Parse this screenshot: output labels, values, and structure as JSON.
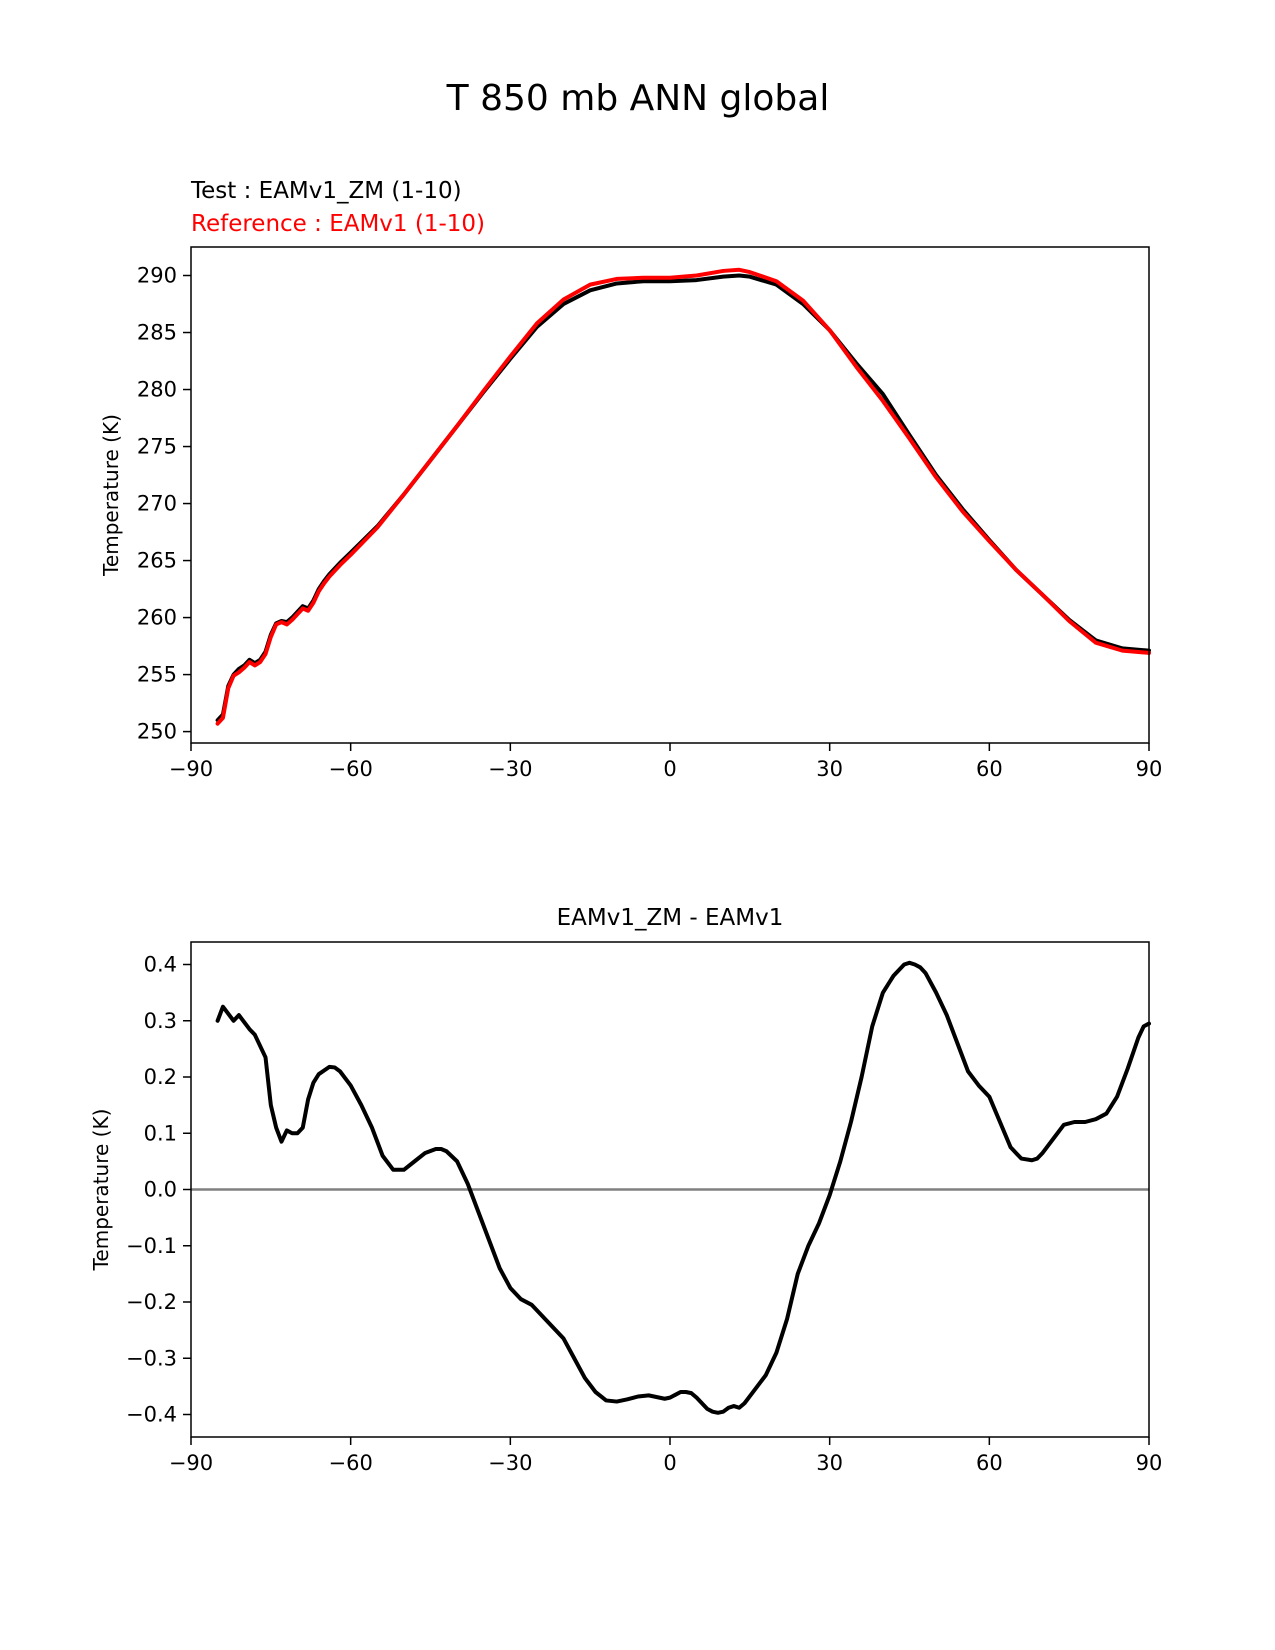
{
  "figure": {
    "title": "T 850 mb ANN global"
  },
  "chart_data": [
    {
      "type": "line",
      "title": "",
      "xlabel": "",
      "ylabel": "Temperature (K)",
      "xlim": [
        -90,
        90
      ],
      "ylim": [
        249,
        292.5
      ],
      "xticks": [
        -90,
        -60,
        -30,
        0,
        30,
        60,
        90
      ],
      "xtick_labels": [
        "−90",
        "−60",
        "−30",
        "0",
        "30",
        "60",
        "90"
      ],
      "yticks": [
        250,
        255,
        260,
        265,
        270,
        275,
        280,
        285,
        290
      ],
      "ytick_labels": [
        "250",
        "255",
        "260",
        "265",
        "270",
        "275",
        "280",
        "285",
        "290"
      ],
      "grid": false,
      "legend": [
        {
          "text": "Test : EAMv1_ZM (1-10)",
          "color": "#000000"
        },
        {
          "text": "Reference : EAMv1 (1-10)",
          "color": "#ff0000"
        }
      ],
      "x": [
        -85,
        -84,
        -83,
        -82,
        -81,
        -80,
        -79,
        -78,
        -77,
        -76,
        -75,
        -74,
        -73,
        -72,
        -71,
        -70,
        -69,
        -68,
        -67,
        -66,
        -65,
        -64,
        -62,
        -60,
        -55,
        -50,
        -45,
        -40,
        -35,
        -30,
        -25,
        -20,
        -15,
        -10,
        -5,
        0,
        5,
        10,
        13,
        15,
        20,
        25,
        30,
        35,
        40,
        45,
        50,
        55,
        60,
        65,
        70,
        75,
        80,
        85,
        90
      ],
      "series": [
        {
          "name": "Test : EAMv1_ZM (1-10)",
          "color": "#000000",
          "values": [
            251.0,
            251.5,
            254.0,
            255.0,
            255.5,
            255.8,
            256.3,
            256.0,
            256.3,
            257.0,
            258.5,
            259.5,
            259.7,
            259.6,
            260.0,
            260.5,
            261.0,
            260.8,
            261.5,
            262.5,
            263.2,
            263.8,
            264.8,
            265.7,
            268.0,
            270.8,
            273.8,
            276.8,
            279.8,
            282.7,
            285.5,
            287.5,
            288.7,
            289.3,
            289.5,
            289.5,
            289.6,
            289.9,
            290.0,
            289.9,
            289.2,
            287.5,
            285.2,
            282.3,
            279.6,
            276.0,
            272.5,
            269.5,
            266.8,
            264.2,
            262.0,
            259.8,
            258.0,
            257.3,
            257.1
          ]
        },
        {
          "name": "Reference : EAMv1 (1-10)",
          "color": "#ff0000",
          "values": [
            250.7,
            251.2,
            253.8,
            254.9,
            255.2,
            255.6,
            256.1,
            255.8,
            256.1,
            256.8,
            258.3,
            259.4,
            259.6,
            259.4,
            259.8,
            260.3,
            260.8,
            260.6,
            261.3,
            262.3,
            263.0,
            263.6,
            264.6,
            265.5,
            267.9,
            270.8,
            273.8,
            276.8,
            279.9,
            282.9,
            285.8,
            287.9,
            289.2,
            289.7,
            289.8,
            289.8,
            290.0,
            290.4,
            290.5,
            290.3,
            289.5,
            287.8,
            285.2,
            282.0,
            279.0,
            275.7,
            272.3,
            269.3,
            266.7,
            264.2,
            262.0,
            259.7,
            257.8,
            257.1,
            256.9
          ]
        }
      ]
    },
    {
      "type": "line",
      "title": "EAMv1_ZM - EAMv1",
      "xlabel": "",
      "ylabel": "Temperature (K)",
      "xlim": [
        -90,
        90
      ],
      "ylim": [
        -0.44,
        0.44
      ],
      "xticks": [
        -90,
        -60,
        -30,
        0,
        30,
        60,
        90
      ],
      "xtick_labels": [
        "−90",
        "−60",
        "−30",
        "0",
        "30",
        "60",
        "90"
      ],
      "yticks": [
        -0.4,
        -0.3,
        -0.2,
        -0.1,
        0.0,
        0.1,
        0.2,
        0.3,
        0.4
      ],
      "ytick_labels": [
        "−0.4",
        "−0.3",
        "−0.2",
        "−0.1",
        "0.0",
        "0.1",
        "0.2",
        "0.3",
        "0.4"
      ],
      "grid": false,
      "zero_line_color": "#808080",
      "x": [
        -85,
        -84,
        -82,
        -81,
        -79,
        -78,
        -76,
        -75,
        -74,
        -73,
        -72,
        -71,
        -70,
        -69,
        -68,
        -67,
        -66,
        -64,
        -63,
        -62,
        -60,
        -58,
        -56,
        -54,
        -52,
        -50,
        -48,
        -46,
        -44,
        -43,
        -42,
        -40,
        -38,
        -36,
        -34,
        -32,
        -30,
        -28,
        -26,
        -24,
        -22,
        -20,
        -18,
        -16,
        -14,
        -12,
        -10,
        -8,
        -6,
        -4,
        -2,
        -1,
        0,
        1,
        2,
        3,
        4,
        5,
        6,
        7,
        8,
        9,
        10,
        11,
        12,
        13,
        14,
        16,
        18,
        20,
        22,
        24,
        26,
        28,
        30,
        32,
        34,
        36,
        38,
        40,
        42,
        44,
        45,
        46,
        47,
        48,
        50,
        52,
        54,
        56,
        58,
        60,
        62,
        64,
        66,
        68,
        69,
        70,
        72,
        74,
        76,
        78,
        80,
        82,
        84,
        86,
        88,
        89,
        90
      ],
      "series": [
        {
          "name": "",
          "color": "#000000",
          "values": [
            0.3,
            0.325,
            0.3,
            0.31,
            0.285,
            0.275,
            0.235,
            0.15,
            0.11,
            0.085,
            0.105,
            0.1,
            0.1,
            0.11,
            0.16,
            0.19,
            0.205,
            0.218,
            0.217,
            0.21,
            0.185,
            0.15,
            0.11,
            0.06,
            0.035,
            0.035,
            0.05,
            0.065,
            0.072,
            0.072,
            0.068,
            0.05,
            0.01,
            -0.04,
            -0.09,
            -0.14,
            -0.175,
            -0.195,
            -0.205,
            -0.225,
            -0.245,
            -0.265,
            -0.3,
            -0.335,
            -0.36,
            -0.375,
            -0.377,
            -0.373,
            -0.368,
            -0.366,
            -0.37,
            -0.372,
            -0.37,
            -0.365,
            -0.36,
            -0.36,
            -0.362,
            -0.37,
            -0.38,
            -0.39,
            -0.395,
            -0.397,
            -0.395,
            -0.388,
            -0.385,
            -0.388,
            -0.38,
            -0.355,
            -0.33,
            -0.29,
            -0.23,
            -0.15,
            -0.1,
            -0.06,
            -0.01,
            0.05,
            0.12,
            0.2,
            0.29,
            0.35,
            0.38,
            0.4,
            0.403,
            0.4,
            0.395,
            0.385,
            0.35,
            0.31,
            0.26,
            0.21,
            0.185,
            0.165,
            0.12,
            0.075,
            0.055,
            0.052,
            0.055,
            0.065,
            0.09,
            0.115,
            0.12,
            0.12,
            0.125,
            0.135,
            0.165,
            0.215,
            0.27,
            0.29,
            0.295
          ]
        }
      ]
    }
  ]
}
